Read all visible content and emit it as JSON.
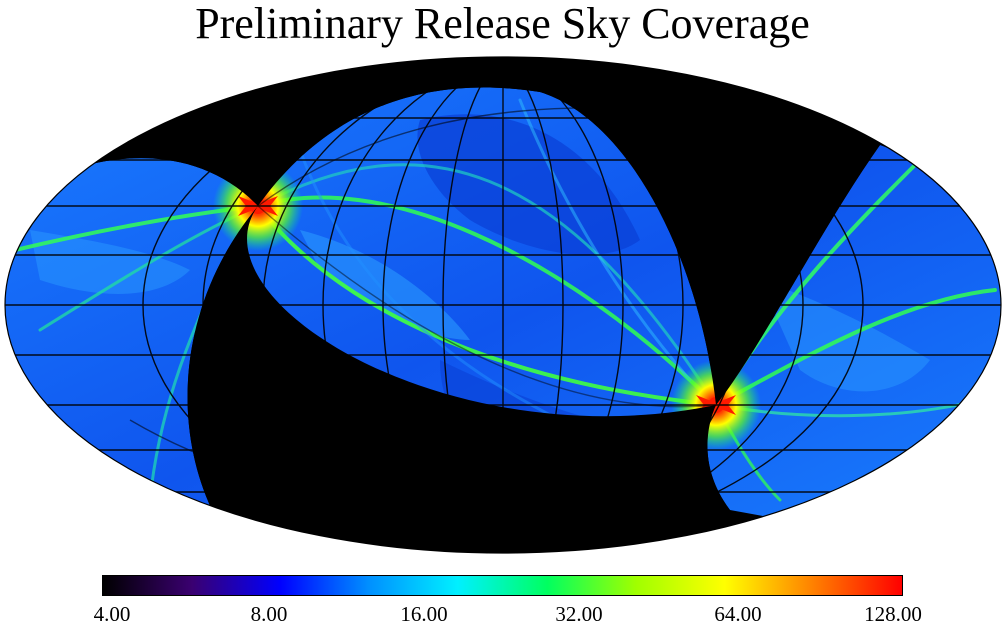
{
  "title": "Preliminary Release Sky Coverage",
  "projection": "mollweide",
  "background_color": "#000000",
  "colorbar": {
    "scale": "log2",
    "min": 4.0,
    "max": 128.0,
    "ticks": [
      "4.00",
      "8.00",
      "16.00",
      "32.00",
      "64.00",
      "128.00"
    ],
    "colors": [
      "#000000",
      "#3a0070",
      "#0000ff",
      "#0090ff",
      "#00f0ff",
      "#00ff60",
      "#a0ff00",
      "#ffff00",
      "#ff8000",
      "#ff0000"
    ]
  },
  "coverage": {
    "typical_value_color": "#1166ff",
    "hotspot_color": "#ff1a00",
    "stripe_color": "#20ff40"
  }
}
